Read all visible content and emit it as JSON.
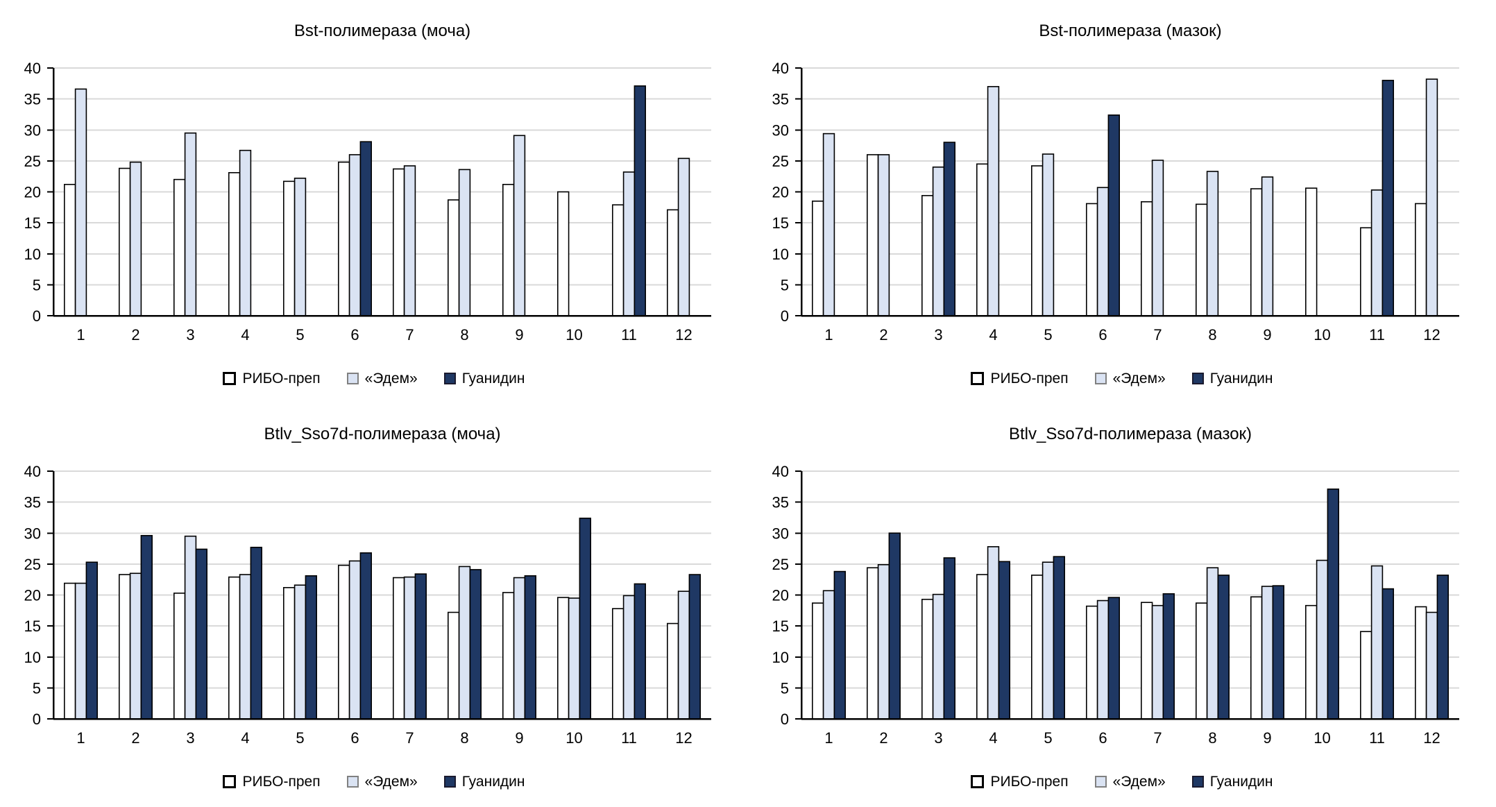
{
  "page": {
    "background": "#ffffff"
  },
  "style": {
    "grid_color": "#d9d9d9",
    "axis_color": "#000000",
    "bar_border_color": "#000000",
    "text_color": "#000000",
    "title_font_size": 24,
    "tick_font_size": 22,
    "legend_font_size": 21
  },
  "series_style": [
    {
      "name": "РИБО-преп",
      "fill": "#ffffff",
      "marker_border": "#000000",
      "marker_border_width": 3
    },
    {
      "name": "«Эдем»",
      "fill": "#dae3f3",
      "marker_border": "#808080",
      "marker_border_width": 2
    },
    {
      "name": "Гуанидин",
      "fill": "#1f3864",
      "marker_border": "#1a1a2e",
      "marker_border_width": 2
    }
  ],
  "chart_data": [
    {
      "type": "bar",
      "title": "Bst-полимераза (моча)",
      "categories": [
        "1",
        "2",
        "3",
        "4",
        "5",
        "6",
        "7",
        "8",
        "9",
        "10",
        "11",
        "12"
      ],
      "ylim": [
        0,
        40
      ],
      "yticks": [
        0,
        5,
        10,
        15,
        20,
        25,
        30,
        35,
        40
      ],
      "grid": true,
      "legend_position": "bottom",
      "series": [
        {
          "name": "РИБО-преп",
          "values": [
            21.2,
            23.8,
            22.0,
            23.1,
            21.7,
            24.8,
            23.7,
            18.7,
            21.2,
            20.0,
            17.9,
            17.1
          ]
        },
        {
          "name": "«Эдем»",
          "values": [
            36.6,
            24.8,
            29.5,
            26.7,
            22.2,
            26.0,
            24.2,
            23.6,
            29.1,
            null,
            23.2,
            25.4
          ]
        },
        {
          "name": "Гуанидин",
          "values": [
            null,
            null,
            null,
            null,
            null,
            28.1,
            null,
            null,
            null,
            null,
            37.1,
            null
          ]
        }
      ]
    },
    {
      "type": "bar",
      "title": "Bst-полимераза (мазок)",
      "categories": [
        "1",
        "2",
        "3",
        "4",
        "5",
        "6",
        "7",
        "8",
        "9",
        "10",
        "11",
        "12"
      ],
      "ylim": [
        0,
        40
      ],
      "yticks": [
        0,
        5,
        10,
        15,
        20,
        25,
        30,
        35,
        40
      ],
      "grid": true,
      "legend_position": "bottom",
      "series": [
        {
          "name": "РИБО-преп",
          "values": [
            18.5,
            26.0,
            19.4,
            24.5,
            24.2,
            18.1,
            18.4,
            18.0,
            20.5,
            20.6,
            14.2,
            18.1
          ]
        },
        {
          "name": "«Эдем»",
          "values": [
            29.4,
            26.0,
            24.0,
            37.0,
            26.1,
            20.7,
            25.1,
            23.3,
            22.4,
            null,
            20.3,
            38.2
          ]
        },
        {
          "name": "Гуанидин",
          "values": [
            null,
            null,
            28.0,
            null,
            null,
            32.4,
            null,
            null,
            null,
            null,
            38.0,
            null
          ]
        }
      ]
    },
    {
      "type": "bar",
      "title": "Btlv_Sso7d-полимераза (моча)",
      "categories": [
        "1",
        "2",
        "3",
        "4",
        "5",
        "6",
        "7",
        "8",
        "9",
        "10",
        "11",
        "12"
      ],
      "ylim": [
        0,
        40
      ],
      "yticks": [
        0,
        5,
        10,
        15,
        20,
        25,
        30,
        35,
        40
      ],
      "grid": true,
      "legend_position": "bottom",
      "series": [
        {
          "name": "РИБО-преп",
          "values": [
            21.9,
            23.3,
            20.3,
            22.9,
            21.2,
            24.8,
            22.8,
            17.2,
            20.4,
            19.6,
            17.8,
            15.4
          ]
        },
        {
          "name": "«Эдем»",
          "values": [
            21.9,
            23.5,
            29.5,
            23.3,
            21.6,
            25.5,
            22.9,
            24.6,
            22.8,
            19.5,
            19.9,
            20.6
          ]
        },
        {
          "name": "Гуанидин",
          "values": [
            25.3,
            29.6,
            27.4,
            27.7,
            23.1,
            26.8,
            23.4,
            24.1,
            23.1,
            32.4,
            21.8,
            23.3
          ]
        }
      ]
    },
    {
      "type": "bar",
      "title": "Btlv_Sso7d-полимераза (мазок)",
      "categories": [
        "1",
        "2",
        "3",
        "4",
        "5",
        "6",
        "7",
        "8",
        "9",
        "10",
        "11",
        "12"
      ],
      "ylim": [
        0,
        40
      ],
      "yticks": [
        0,
        5,
        10,
        15,
        20,
        25,
        30,
        35,
        40
      ],
      "grid": true,
      "legend_position": "bottom",
      "series": [
        {
          "name": "РИБО-преп",
          "values": [
            18.7,
            24.4,
            19.3,
            23.3,
            23.2,
            18.2,
            18.8,
            18.7,
            19.7,
            18.3,
            14.1,
            18.1
          ]
        },
        {
          "name": "«Эдем»",
          "values": [
            20.7,
            24.9,
            20.1,
            27.8,
            25.3,
            19.1,
            18.3,
            24.4,
            21.4,
            25.6,
            24.7,
            17.2
          ]
        },
        {
          "name": "Гуанидин",
          "values": [
            23.8,
            30.0,
            26.0,
            25.4,
            26.2,
            19.6,
            20.2,
            23.2,
            21.5,
            37.1,
            21.0,
            23.2
          ]
        }
      ]
    }
  ]
}
